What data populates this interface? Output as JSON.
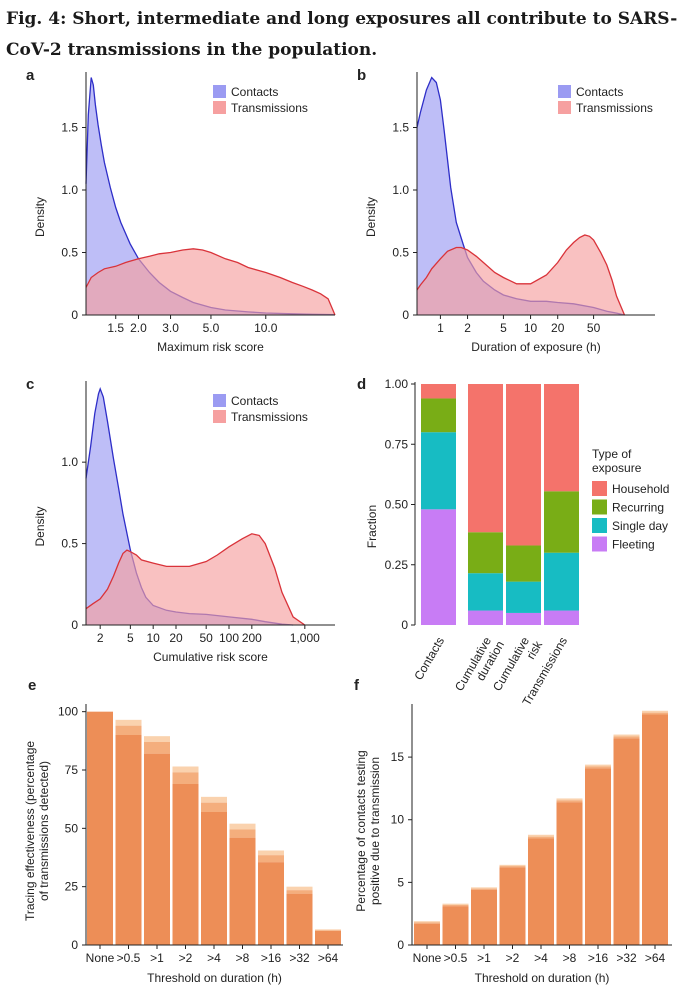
{
  "title": "Fig. 4: Short, intermediate and long exposures all contribute to SARS-CoV-2 transmissions in the population.",
  "colors": {
    "contacts_fill": "#9b9bf2",
    "contacts_line": "#2e2ec8",
    "transmissions_fill": "#f6a0a0",
    "transmissions_line": "#d9333a",
    "household": "#f4736b",
    "recurring": "#79ad16",
    "single_day": "#17bcc3",
    "fleeting": "#c87cf5",
    "bar_main": "#ed8e57",
    "bar_mid": "#f4ae7d",
    "bar_light": "#fad2ae"
  },
  "chart_data": [
    {
      "panel": "a",
      "type": "area",
      "xscale": "log",
      "xlabel": "Maximum risk score",
      "ylabel": "Density",
      "xlim": [
        1.03,
        24
      ],
      "ylim": [
        0,
        1.92
      ],
      "xticks": [
        1.5,
        2.0,
        3.0,
        5.0,
        10.0
      ],
      "xticklabels": [
        "1.5",
        "2.0",
        "3.0",
        "5.0",
        "10.0"
      ],
      "yticks": [
        0,
        0.5,
        1.0,
        1.5
      ],
      "yticklabels": [
        "0",
        "0.5",
        "1.0",
        "1.5"
      ],
      "legend": [
        "Contacts",
        "Transmissions"
      ],
      "series": [
        {
          "name": "Contacts",
          "x": [
            1.03,
            1.06,
            1.1,
            1.13,
            1.16,
            1.2,
            1.25,
            1.3,
            1.4,
            1.5,
            1.6,
            1.8,
            2.0,
            2.3,
            2.6,
            3.0,
            3.5,
            4.0,
            5.0,
            6.0,
            8.0,
            10.0,
            14.0,
            18.0,
            22.0,
            24.0
          ],
          "y": [
            1.05,
            1.6,
            1.9,
            1.84,
            1.68,
            1.52,
            1.36,
            1.22,
            1.02,
            0.86,
            0.74,
            0.57,
            0.45,
            0.34,
            0.26,
            0.19,
            0.14,
            0.1,
            0.06,
            0.04,
            0.025,
            0.016,
            0.01,
            0.006,
            0.004,
            0.003
          ]
        },
        {
          "name": "Transmissions",
          "x": [
            1.03,
            1.1,
            1.2,
            1.3,
            1.5,
            1.7,
            2.0,
            2.3,
            2.6,
            3.0,
            3.5,
            4.0,
            4.5,
            5.0,
            6.0,
            7.0,
            8.0,
            10.0,
            12.0,
            14.0,
            16.0,
            18.0,
            20.0,
            22.0,
            24.0
          ],
          "y": [
            0.22,
            0.3,
            0.34,
            0.37,
            0.39,
            0.42,
            0.45,
            0.47,
            0.49,
            0.5,
            0.52,
            0.53,
            0.52,
            0.5,
            0.45,
            0.42,
            0.38,
            0.34,
            0.3,
            0.26,
            0.23,
            0.2,
            0.17,
            0.13,
            0.0
          ]
        }
      ]
    },
    {
      "panel": "b",
      "type": "area",
      "xscale": "log",
      "xlabel": "Duration of exposure (h)",
      "ylabel": "Density",
      "xlim": [
        0.55,
        240
      ],
      "ylim": [
        0,
        1.92
      ],
      "xticks": [
        1,
        2,
        5,
        10,
        20,
        50
      ],
      "xticklabels": [
        "1",
        "2",
        "5",
        "10",
        "20",
        "50"
      ],
      "yticks": [
        0,
        0.5,
        1.0,
        1.5
      ],
      "yticklabels": [
        "0",
        "0.5",
        "1.0",
        "1.5"
      ],
      "legend": [
        "Contacts",
        "Transmissions"
      ],
      "series": [
        {
          "name": "Contacts",
          "x": [
            0.55,
            0.6,
            0.7,
            0.8,
            0.9,
            1.0,
            1.1,
            1.3,
            1.5,
            1.8,
            2.0,
            2.5,
            3.0,
            4.0,
            5.0,
            7.0,
            10.0,
            15.0,
            20.0,
            30.0,
            50.0,
            70.0,
            90.0,
            110.0
          ],
          "y": [
            1.5,
            1.62,
            1.8,
            1.9,
            1.86,
            1.72,
            1.48,
            1.02,
            0.74,
            0.56,
            0.46,
            0.34,
            0.27,
            0.2,
            0.16,
            0.13,
            0.11,
            0.11,
            0.1,
            0.09,
            0.06,
            0.03,
            0.015,
            0.0
          ]
        },
        {
          "name": "Transmissions",
          "x": [
            0.55,
            0.6,
            0.7,
            0.8,
            1.0,
            1.2,
            1.5,
            1.7,
            2.0,
            2.5,
            3.0,
            4.0,
            5.0,
            7.0,
            10.0,
            15.0,
            20.0,
            25.0,
            30.0,
            35.0,
            40.0,
            45.0,
            50.0,
            60.0,
            70.0,
            80.0,
            90.0,
            110.0
          ],
          "y": [
            0.2,
            0.24,
            0.3,
            0.37,
            0.45,
            0.51,
            0.54,
            0.54,
            0.52,
            0.47,
            0.42,
            0.34,
            0.3,
            0.25,
            0.25,
            0.32,
            0.42,
            0.52,
            0.58,
            0.62,
            0.64,
            0.63,
            0.6,
            0.5,
            0.4,
            0.28,
            0.15,
            0.0
          ]
        }
      ]
    },
    {
      "panel": "c",
      "type": "area",
      "xscale": "log",
      "xlabel": "Cumulative risk score",
      "ylabel": "Density",
      "xlim": [
        1.3,
        2500
      ],
      "ylim": [
        0,
        1.48
      ],
      "xticks": [
        2,
        5,
        10,
        20,
        50,
        100,
        200,
        1000
      ],
      "xticklabels": [
        "2",
        "5",
        "10",
        "20",
        "50",
        "100",
        "200",
        "1,000"
      ],
      "yticks": [
        0,
        0.5,
        1.0
      ],
      "yticklabels": [
        "0",
        "0.5",
        "1.0"
      ],
      "legend": [
        "Contacts",
        "Transmissions"
      ],
      "series": [
        {
          "name": "Contacts",
          "x": [
            1.3,
            1.5,
            1.7,
            1.9,
            2.0,
            2.2,
            2.5,
            3.0,
            3.5,
            4.0,
            5.0,
            6.0,
            7.0,
            8.0,
            10.0,
            15.0,
            20.0,
            30.0,
            50.0,
            100.0,
            200.0,
            300.0,
            500.0,
            700.0
          ],
          "y": [
            0.9,
            1.1,
            1.3,
            1.42,
            1.45,
            1.4,
            1.25,
            1.02,
            0.84,
            0.68,
            0.46,
            0.32,
            0.23,
            0.17,
            0.12,
            0.09,
            0.08,
            0.07,
            0.065,
            0.05,
            0.035,
            0.02,
            0.005,
            0.0
          ]
        },
        {
          "name": "Transmissions",
          "x": [
            1.3,
            1.6,
            2.0,
            2.5,
            3.0,
            3.5,
            4.0,
            4.5,
            5.0,
            6.0,
            7.0,
            10.0,
            15.0,
            20.0,
            30.0,
            50.0,
            70.0,
            100.0,
            150.0,
            200.0,
            250.0,
            300.0,
            400.0,
            500.0,
            700.0,
            1000.0
          ],
          "y": [
            0.1,
            0.13,
            0.16,
            0.22,
            0.3,
            0.38,
            0.44,
            0.46,
            0.45,
            0.43,
            0.4,
            0.38,
            0.36,
            0.36,
            0.36,
            0.39,
            0.43,
            0.48,
            0.53,
            0.56,
            0.55,
            0.5,
            0.35,
            0.2,
            0.05,
            0.0
          ]
        }
      ]
    },
    {
      "panel": "d",
      "type": "bar",
      "stacked": true,
      "ylabel": "Fraction",
      "ylim": [
        0,
        1.0
      ],
      "yticks": [
        0,
        0.25,
        0.5,
        0.75,
        1.0
      ],
      "yticklabels": [
        "0",
        "0.25",
        "0.50",
        "0.75",
        "1.00"
      ],
      "categories": [
        "Contacts",
        "Cumulative duration",
        "Cumulative risk",
        "Transmissions"
      ],
      "legend_title": "Type of exposure",
      "legend": [
        "Household",
        "Recurring",
        "Single day",
        "Fleeting"
      ],
      "series": [
        {
          "name": "Fleeting",
          "values": [
            0.48,
            0.06,
            0.05,
            0.06
          ]
        },
        {
          "name": "Single day",
          "values": [
            0.32,
            0.155,
            0.13,
            0.24
          ]
        },
        {
          "name": "Recurring",
          "values": [
            0.14,
            0.17,
            0.15,
            0.255
          ]
        },
        {
          "name": "Household",
          "values": [
            0.06,
            0.615,
            0.67,
            0.445
          ]
        }
      ]
    },
    {
      "panel": "e",
      "type": "bar",
      "xlabel": "Threshold on duration (h)",
      "ylabel": "Tracing effectiveness (percentage of transmissions detected)",
      "ylim": [
        0,
        102
      ],
      "yticks": [
        0,
        25,
        50,
        75,
        100
      ],
      "yticklabels": [
        "0",
        "25",
        "50",
        "75",
        "100"
      ],
      "categories": [
        "None",
        ">0.5",
        ">1",
        ">2",
        ">4",
        ">8",
        ">16",
        ">32",
        ">64"
      ],
      "values": [
        100,
        90,
        82,
        69,
        57,
        46,
        35.5,
        22,
        6
      ],
      "values_mid": [
        100,
        94,
        87,
        74,
        61,
        49.5,
        38.5,
        23.5,
        6.3
      ],
      "values_high": [
        100,
        96.5,
        89.5,
        76.5,
        63.5,
        52,
        40.5,
        25,
        6.7
      ]
    },
    {
      "panel": "f",
      "type": "bar",
      "xlabel": "Threshold on duration (h)",
      "ylabel": "Percentage of contacts testing positive due to transmission",
      "ylim": [
        0,
        19
      ],
      "yticks": [
        0,
        5,
        10,
        15
      ],
      "yticklabels": [
        "0",
        "5",
        "10",
        "15"
      ],
      "categories": [
        "None",
        ">0.5",
        ">1",
        ">2",
        ">4",
        ">8",
        ">16",
        ">32",
        ">64"
      ],
      "values": [
        1.7,
        3.1,
        4.4,
        6.2,
        8.5,
        11.4,
        14.1,
        16.5,
        18.4
      ],
      "values_mid": [
        1.8,
        3.2,
        4.5,
        6.3,
        8.65,
        11.55,
        14.25,
        16.65,
        18.55
      ],
      "values_high": [
        1.9,
        3.3,
        4.6,
        6.4,
        8.8,
        11.7,
        14.4,
        16.8,
        18.7
      ]
    }
  ]
}
